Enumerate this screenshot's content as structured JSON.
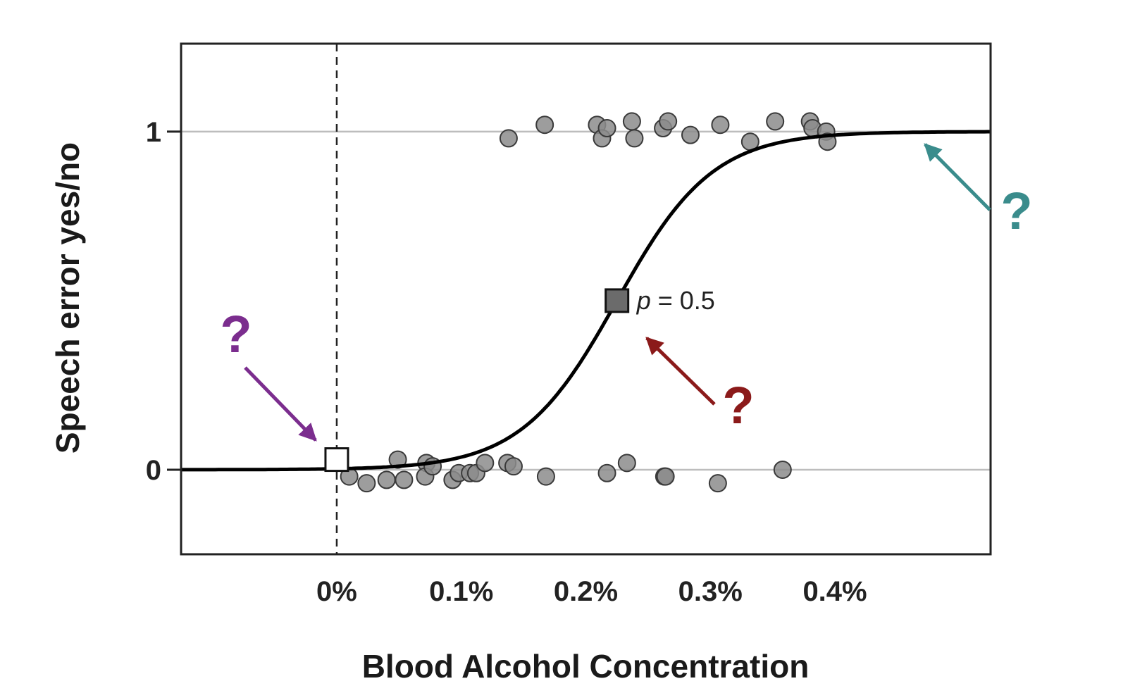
{
  "chart_data": {
    "type": "scatter",
    "title": "",
    "xlabel": "Blood Alcohol Concentration",
    "ylabel": "Speech error yes/no",
    "x_ticks": [
      {
        "value": 0.0,
        "label": "0%"
      },
      {
        "value": 0.1,
        "label": "0.1%"
      },
      {
        "value": 0.2,
        "label": "0.2%"
      },
      {
        "value": 0.3,
        "label": "0.3%"
      },
      {
        "value": 0.4,
        "label": "0.4%"
      }
    ],
    "y_ticks": [
      {
        "value": 0,
        "label": "0"
      },
      {
        "value": 1,
        "label": "1"
      }
    ],
    "xlim": [
      -0.125,
      0.525
    ],
    "ylim": [
      -0.25,
      1.26
    ],
    "grid": "horizontal lines at y = 0 and y = 1",
    "logistic_curve": {
      "midpoint": 0.225,
      "slope": 26
    },
    "reference_line": {
      "x": 0.0,
      "style": "dashed"
    },
    "series": [
      {
        "outcome": 1,
        "color": "#8c8c8c",
        "points": [
          [
            0.138,
            0.98
          ],
          [
            0.167,
            1.02
          ],
          [
            0.209,
            1.02
          ],
          [
            0.213,
            0.98
          ],
          [
            0.217,
            1.01
          ],
          [
            0.237,
            1.03
          ],
          [
            0.239,
            0.98
          ],
          [
            0.262,
            1.01
          ],
          [
            0.266,
            1.03
          ],
          [
            0.284,
            0.99
          ],
          [
            0.308,
            1.02
          ],
          [
            0.332,
            0.97
          ],
          [
            0.352,
            1.03
          ],
          [
            0.38,
            1.03
          ],
          [
            0.382,
            1.01
          ],
          [
            0.393,
            1.0
          ],
          [
            0.394,
            0.97
          ]
        ]
      },
      {
        "outcome": 0,
        "color": "#8c8c8c",
        "points": [
          [
            0.01,
            -0.02
          ],
          [
            0.024,
            -0.04
          ],
          [
            0.04,
            -0.03
          ],
          [
            0.049,
            0.03
          ],
          [
            0.054,
            -0.03
          ],
          [
            0.072,
            0.02
          ],
          [
            0.071,
            -0.02
          ],
          [
            0.077,
            0.01
          ],
          [
            0.093,
            -0.03
          ],
          [
            0.098,
            -0.01
          ],
          [
            0.107,
            -0.01
          ],
          [
            0.112,
            -0.01
          ],
          [
            0.119,
            0.02
          ],
          [
            0.137,
            0.02
          ],
          [
            0.142,
            0.01
          ],
          [
            0.168,
            -0.02
          ],
          [
            0.217,
            -0.01
          ],
          [
            0.233,
            0.02
          ],
          [
            0.263,
            -0.02
          ],
          [
            0.264,
            -0.02
          ],
          [
            0.306,
            -0.04
          ],
          [
            0.358,
            -0.0
          ]
        ]
      }
    ],
    "markers": [
      {
        "name": "intercept",
        "x": 0.0,
        "y": 0.03,
        "fill": "#ffffff"
      },
      {
        "name": "midpoint",
        "x": 0.225,
        "y": 0.5,
        "fill": "#6b6b6b",
        "label_italic": "p",
        "label_rest": " = 0.5"
      }
    ],
    "annotations": [
      {
        "text": "?",
        "color": "#7b2d8e",
        "points_to": "intercept"
      },
      {
        "text": "?",
        "color": "#8b1a1a",
        "points_to": "midpoint"
      },
      {
        "text": "?",
        "color": "#3a8c8c",
        "points_to": "upper asymptote"
      }
    ]
  }
}
